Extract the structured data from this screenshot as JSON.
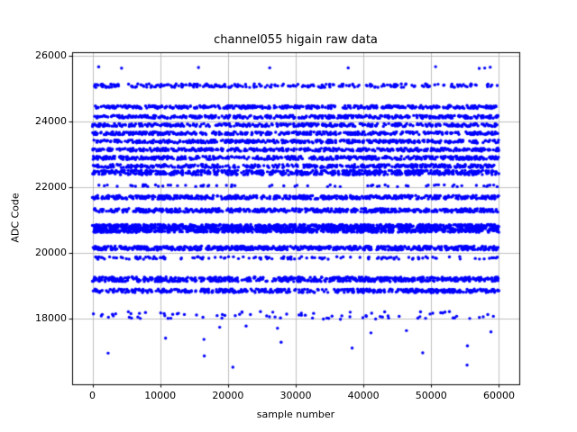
{
  "figure": {
    "background": "#ffffff"
  },
  "chart_data": {
    "type": "scatter",
    "title": "channel055 higain raw data",
    "xlabel": "sample number",
    "ylabel": "ADC Code",
    "xlim": [
      -3000,
      63000
    ],
    "ylim": [
      16000,
      26120
    ],
    "xticks": [
      0,
      10000,
      20000,
      30000,
      40000,
      50000,
      60000
    ],
    "yticks": [
      18000,
      20000,
      22000,
      24000,
      26000
    ],
    "grid": true,
    "grid_color": "#b0b0b0",
    "spine_color": "#000000",
    "marker_color": "#0000ff",
    "marker_size_px": 1.7,
    "x_data_range": [
      0,
      60000
    ],
    "bands": [
      {
        "adc": 25650,
        "jitter": 30,
        "count": 9
      },
      {
        "adc": 25100,
        "jitter": 55,
        "count": 260
      },
      {
        "adc": 24450,
        "jitter": 45,
        "count": 420
      },
      {
        "adc": 24150,
        "jitter": 45,
        "count": 420
      },
      {
        "adc": 23900,
        "jitter": 45,
        "count": 380
      },
      {
        "adc": 23650,
        "jitter": 45,
        "count": 420
      },
      {
        "adc": 23400,
        "jitter": 45,
        "count": 440
      },
      {
        "adc": 23150,
        "jitter": 45,
        "count": 440
      },
      {
        "adc": 22900,
        "jitter": 50,
        "count": 480
      },
      {
        "adc": 22650,
        "jitter": 50,
        "count": 420
      },
      {
        "adc": 22450,
        "jitter": 70,
        "count": 600
      },
      {
        "adc": 22050,
        "jitter": 30,
        "count": 70
      },
      {
        "adc": 21700,
        "jitter": 55,
        "count": 550
      },
      {
        "adc": 21300,
        "jitter": 55,
        "count": 550
      },
      {
        "adc": 20750,
        "jitter": 120,
        "count": 1600
      },
      {
        "adc": 20150,
        "jitter": 60,
        "count": 650
      },
      {
        "adc": 19850,
        "jitter": 40,
        "count": 140
      },
      {
        "adc": 19200,
        "jitter": 70,
        "count": 650
      },
      {
        "adc": 18850,
        "jitter": 55,
        "count": 480
      },
      {
        "adc": 18100,
        "jitter": 120,
        "count": 85
      }
    ],
    "low_outliers": {
      "count": 16,
      "adc_min": 16450,
      "adc_max": 17800
    }
  }
}
